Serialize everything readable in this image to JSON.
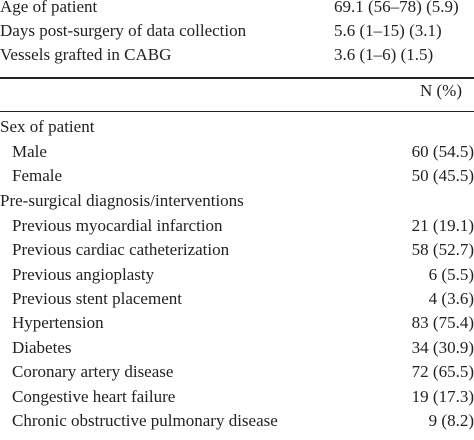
{
  "summary_rows": [
    [
      "Age of patient",
      "69.1 (56–78) (5.9)"
    ],
    [
      "Days post-surgery of data collection",
      "5.6 (1–15) (3.1)"
    ],
    [
      "Vessels grafted in CABG",
      "3.6 (1–6) (1.5)"
    ]
  ],
  "column_header": "N (%)",
  "groups": [
    {
      "label": "Sex of patient",
      "rows": [
        [
          "Male",
          "60 (54.5)"
        ],
        [
          "Female",
          "50 (45.5)"
        ]
      ]
    },
    {
      "label": "Pre-surgical diagnosis/interventions",
      "rows": [
        [
          "Previous myocardial infarction",
          "21 (19.1)"
        ],
        [
          "Previous cardiac catheterization",
          "58 (52.7)"
        ],
        [
          "Previous angioplasty",
          "6 (5.5)"
        ],
        [
          "Previous stent placement",
          "4 (3.6)"
        ],
        [
          "Hypertension",
          "83 (75.4)"
        ],
        [
          "Diabetes",
          "34 (30.9)"
        ],
        [
          "Coronary artery disease",
          "72 (65.5)"
        ],
        [
          "Congestive heart failure",
          "19 (17.3)"
        ],
        [
          "Chronic obstructive pulmonary disease",
          "9 (8.2)"
        ]
      ]
    }
  ]
}
